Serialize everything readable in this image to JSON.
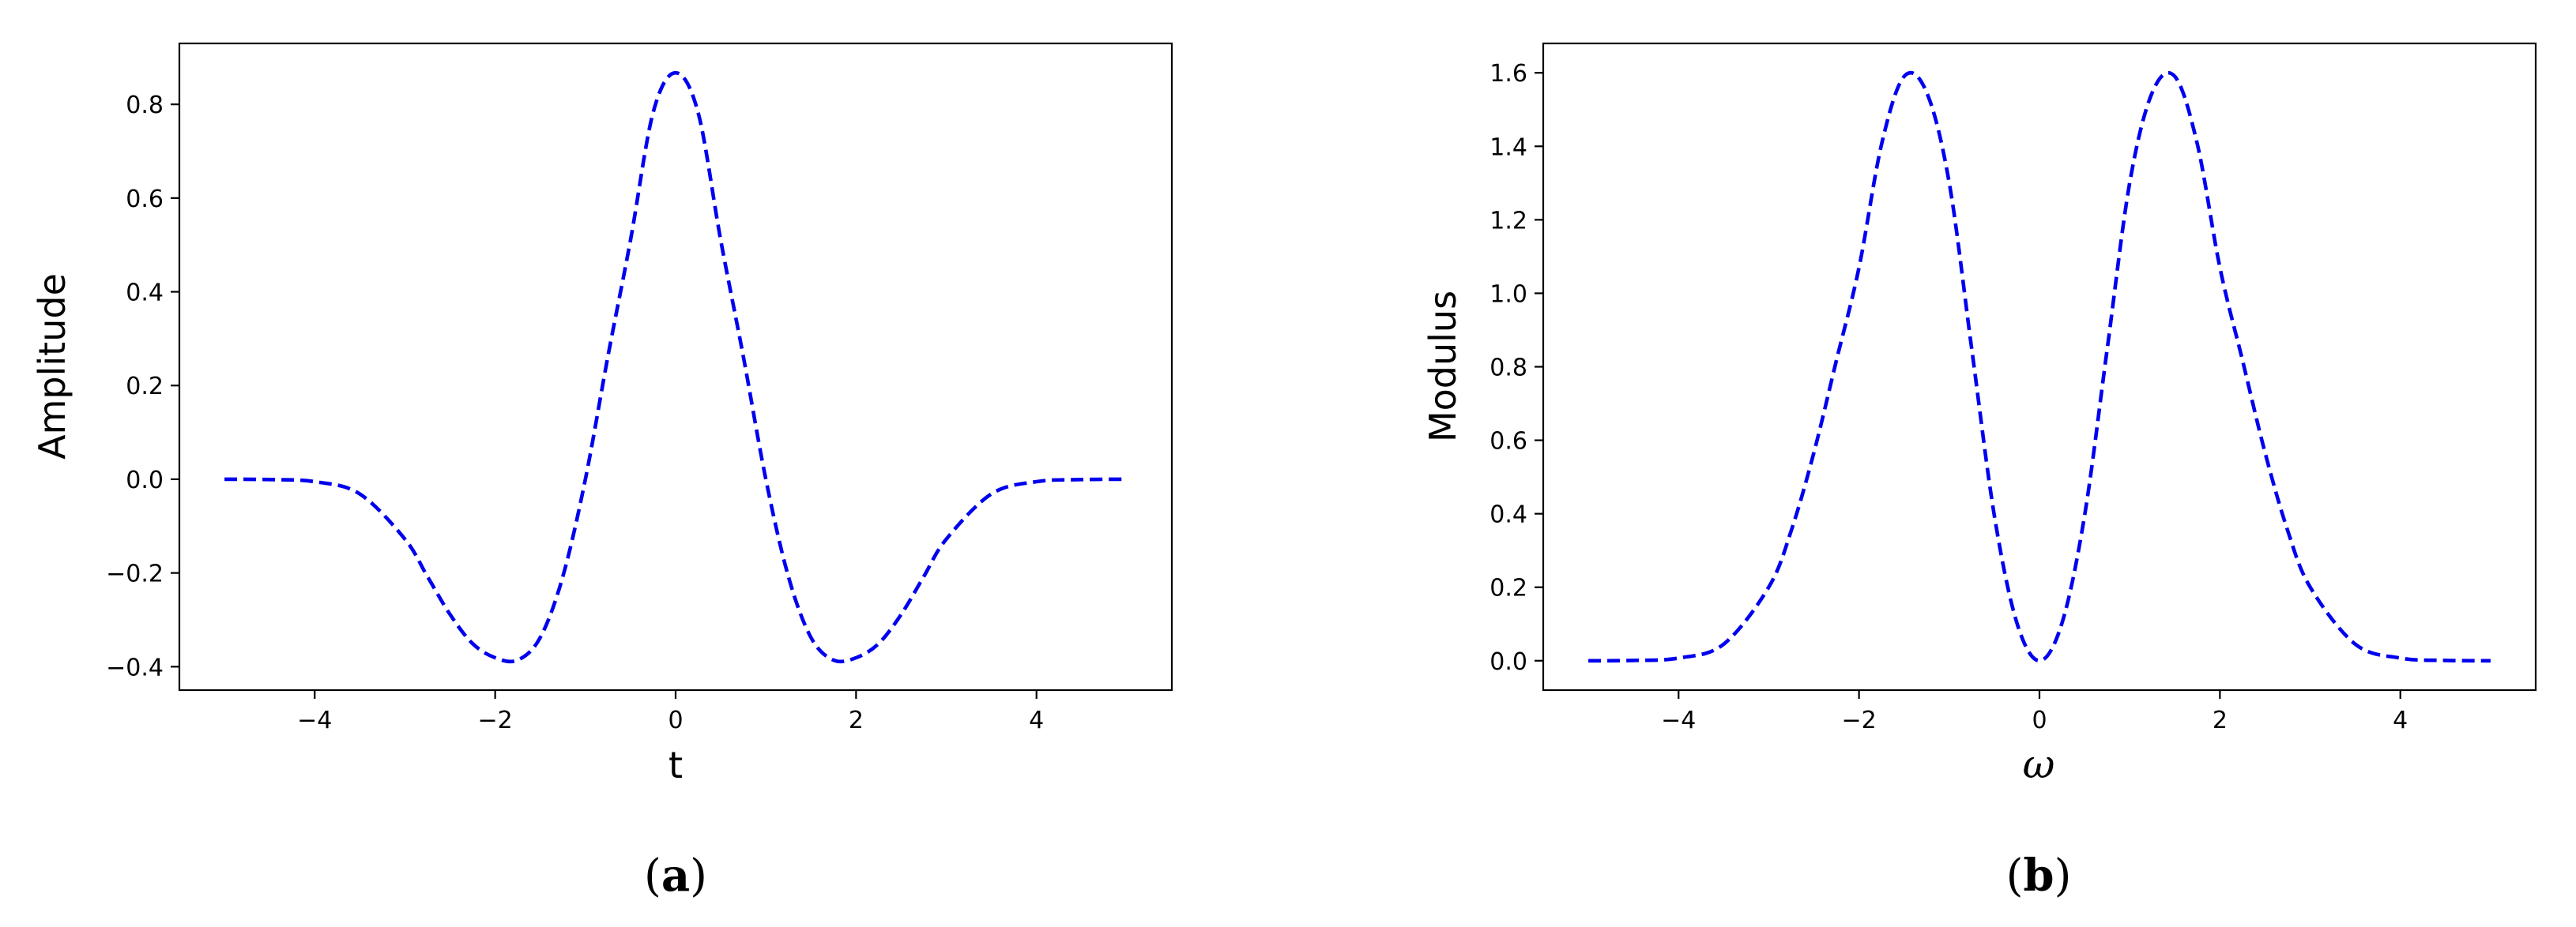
{
  "chart_data": [
    {
      "type": "line",
      "panel_label_open": "(",
      "panel_label_letter": "a",
      "panel_label_close": ")",
      "title": "",
      "xlabel": "t",
      "ylabel": "Amplitude",
      "xlim": [
        -5.5,
        5.5
      ],
      "ylim": [
        -0.45,
        0.93
      ],
      "xticks": [
        -4,
        -2,
        0,
        2,
        4
      ],
      "xtick_labels": [
        "−4",
        "−2",
        "0",
        "2",
        "4"
      ],
      "yticks": [
        -0.4,
        -0.2,
        0.0,
        0.2,
        0.4,
        0.6,
        0.8
      ],
      "ytick_labels": [
        "−0.4",
        "−0.2",
        "0.0",
        "0.2",
        "0.4",
        "0.6",
        "0.8"
      ],
      "grid": false,
      "color": "#0000ee",
      "line_style": "dashed",
      "x": [
        -5.0,
        -4.5,
        -4.0,
        -3.5,
        -3.0,
        -2.75,
        -2.5,
        -2.25,
        -2.0,
        -1.75,
        -1.5,
        -1.25,
        -1.0,
        -0.75,
        -0.5,
        -0.25,
        0.0,
        0.25,
        0.5,
        0.75,
        1.0,
        1.25,
        1.5,
        1.75,
        2.0,
        2.25,
        2.5,
        2.75,
        3.0,
        3.5,
        4.0,
        4.5,
        5.0
      ],
      "y": [
        0.0,
        -0.0007,
        -0.0052,
        -0.0314,
        -0.1278,
        -0.2078,
        -0.2885,
        -0.3507,
        -0.3809,
        -0.3859,
        -0.3376,
        -0.2077,
        0.0,
        0.2625,
        0.5101,
        0.7819,
        0.8673,
        0.7819,
        0.5101,
        0.2625,
        0.0,
        -0.2077,
        -0.3376,
        -0.3859,
        -0.3809,
        -0.3507,
        -0.2885,
        -0.2078,
        -0.1278,
        -0.0314,
        -0.0052,
        -0.0007,
        0.0
      ]
    },
    {
      "type": "line",
      "panel_label_open": "(",
      "panel_label_letter": "b",
      "panel_label_close": ")",
      "title": "",
      "xlabel": "ω",
      "ylabel": "Modulus",
      "xlim": [
        -5.5,
        5.5
      ],
      "ylim": [
        -0.08,
        1.68
      ],
      "xticks": [
        -4,
        -2,
        0,
        2,
        4
      ],
      "xtick_labels": [
        "−4",
        "−2",
        "0",
        "2",
        "4"
      ],
      "yticks": [
        0.0,
        0.2,
        0.4,
        0.6,
        0.8,
        1.0,
        1.2,
        1.4,
        1.6
      ],
      "ytick_labels": [
        "0.0",
        "0.2",
        "0.4",
        "0.6",
        "0.8",
        "1.0",
        "1.2",
        "1.4",
        "1.6"
      ],
      "grid": false,
      "color": "#0000ee",
      "line_style": "dashed",
      "x": [
        -5.0,
        -4.5,
        -4.0,
        -3.5,
        -3.0,
        -2.75,
        -2.5,
        -2.25,
        -2.0,
        -1.75,
        -1.5,
        -1.25,
        -1.0,
        -0.75,
        -0.5,
        -0.25,
        0.0,
        0.25,
        0.5,
        0.75,
        1.0,
        1.25,
        1.5,
        1.75,
        2.0,
        2.25,
        2.5,
        2.75,
        3.0,
        3.5,
        4.0,
        4.5,
        5.0
      ],
      "y": [
        0.0,
        0.0008,
        0.0072,
        0.0451,
        0.2005,
        0.355,
        0.5666,
        0.8179,
        1.0699,
        1.4057,
        1.5902,
        1.5464,
        1.3006,
        0.8471,
        0.3947,
        0.1029,
        0.0,
        0.1029,
        0.3947,
        0.8471,
        1.3006,
        1.5464,
        1.5902,
        1.4057,
        1.0699,
        0.8179,
        0.5666,
        0.355,
        0.2005,
        0.0451,
        0.0072,
        0.0008,
        0.0
      ]
    }
  ]
}
